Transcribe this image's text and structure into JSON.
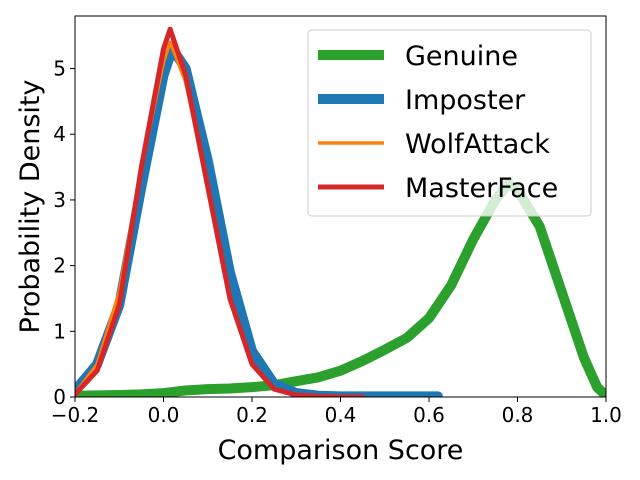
{
  "chart_data": {
    "type": "line",
    "title": "",
    "xlabel": "Comparison Score",
    "ylabel": "Probability Density",
    "xlim": [
      -0.2,
      1.0
    ],
    "ylim": [
      0,
      5.8
    ],
    "xticks": [
      -0.2,
      0.0,
      0.2,
      0.4,
      0.6,
      0.8,
      1.0
    ],
    "xtick_labels": [
      "−0.2",
      "0.0",
      "0.2",
      "0.4",
      "0.6",
      "0.8",
      "1.0"
    ],
    "yticks": [
      0,
      1,
      2,
      3,
      4,
      5
    ],
    "ytick_labels": [
      "0",
      "1",
      "2",
      "3",
      "4",
      "5"
    ],
    "grid": false,
    "legend": {
      "placement": "top-right",
      "entries": [
        "Genuine",
        "Imposter",
        "WolfAttack",
        "MasterFace"
      ]
    },
    "series": [
      {
        "name": "Genuine",
        "color": "#2ca02c",
        "linewidth": "thick",
        "x": [
          -0.2,
          -0.1,
          -0.05,
          0.0,
          0.05,
          0.1,
          0.15,
          0.2,
          0.25,
          0.3,
          0.35,
          0.4,
          0.45,
          0.5,
          0.55,
          0.6,
          0.65,
          0.7,
          0.75,
          0.78,
          0.8,
          0.85,
          0.9,
          0.95,
          0.98,
          1.0
        ],
        "y": [
          0.02,
          0.03,
          0.04,
          0.06,
          0.1,
          0.12,
          0.13,
          0.15,
          0.18,
          0.24,
          0.3,
          0.4,
          0.55,
          0.72,
          0.9,
          1.2,
          1.7,
          2.4,
          3.0,
          3.25,
          3.15,
          2.6,
          1.6,
          0.6,
          0.15,
          0.02
        ]
      },
      {
        "name": "Imposter",
        "color": "#1f77b4",
        "linewidth": "thick",
        "x": [
          -0.2,
          -0.15,
          -0.1,
          -0.05,
          0.0,
          0.02,
          0.05,
          0.1,
          0.15,
          0.2,
          0.25,
          0.3,
          0.35,
          0.4,
          0.45,
          0.5,
          0.55,
          0.6,
          0.62
        ],
        "y": [
          0.1,
          0.5,
          1.4,
          3.2,
          4.9,
          5.3,
          5.0,
          3.6,
          1.9,
          0.7,
          0.2,
          0.06,
          0.02,
          0.01,
          0.01,
          0.01,
          0.01,
          0.01,
          0.01
        ]
      },
      {
        "name": "WolfAttack",
        "color": "#ff7f0e",
        "linewidth": "thin",
        "x": [
          -0.2,
          -0.15,
          -0.1,
          -0.05,
          0.0,
          0.015,
          0.05,
          0.1,
          0.15,
          0.2,
          0.25,
          0.3,
          0.35,
          0.4
        ],
        "y": [
          0.05,
          0.5,
          1.6,
          3.5,
          5.1,
          5.4,
          4.8,
          3.2,
          1.5,
          0.5,
          0.12,
          0.03,
          0.01,
          0.0
        ]
      },
      {
        "name": "MasterFace",
        "color": "#d62728",
        "linewidth": "medium",
        "x": [
          -0.2,
          -0.15,
          -0.1,
          -0.05,
          0.0,
          0.015,
          0.05,
          0.1,
          0.15,
          0.2,
          0.25,
          0.3,
          0.35,
          0.4,
          0.45
        ],
        "y": [
          0.04,
          0.4,
          1.4,
          3.5,
          5.3,
          5.6,
          4.9,
          3.2,
          1.5,
          0.5,
          0.12,
          0.03,
          0.01,
          0.0,
          0.0
        ]
      }
    ]
  }
}
